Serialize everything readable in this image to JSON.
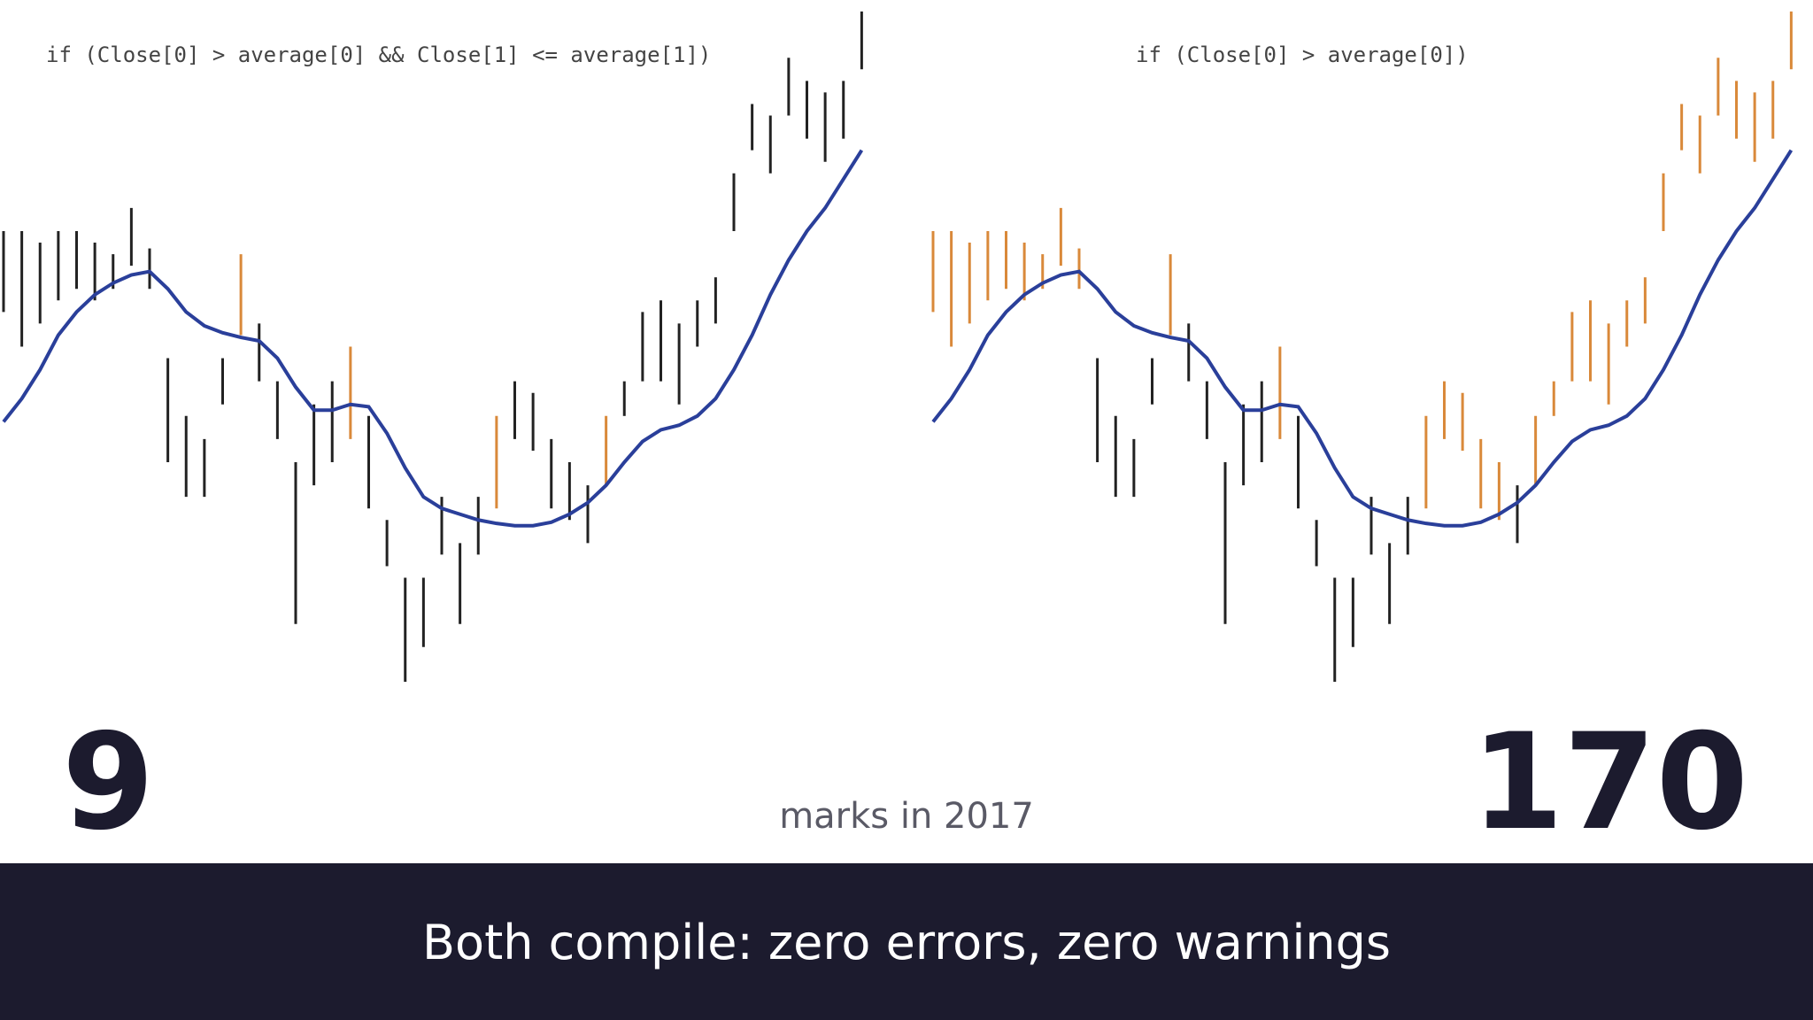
{
  "panels": [
    {
      "code": "if (Close[0] > average[0] && Close[1] <= average[1])",
      "count": "9",
      "rule": "cross"
    },
    {
      "code": "if (Close[0] > average[0])",
      "count": "170",
      "rule": "above"
    }
  ],
  "series": {
    "low": [
      330,
      300,
      320,
      340,
      350,
      340,
      350,
      370,
      350,
      200,
      170,
      170,
      250,
      310,
      270,
      220,
      60,
      180,
      200,
      220,
      160,
      110,
      10,
      40,
      120,
      60,
      120,
      160,
      220,
      210,
      160,
      150,
      130,
      180,
      240,
      270,
      270,
      250,
      300,
      320,
      400,
      470,
      450,
      500,
      480,
      460,
      480,
      540
    ],
    "high": [
      400,
      400,
      390,
      400,
      400,
      390,
      380,
      420,
      385,
      290,
      240,
      220,
      290,
      380,
      320,
      270,
      200,
      250,
      270,
      300,
      240,
      150,
      100,
      100,
      170,
      130,
      170,
      240,
      270,
      260,
      220,
      200,
      180,
      240,
      270,
      330,
      340,
      320,
      340,
      360,
      450,
      510,
      500,
      550,
      530,
      520,
      530,
      590
    ],
    "average": [
      235,
      255,
      280,
      310,
      330,
      345,
      355,
      362,
      365,
      350,
      330,
      318,
      312,
      308,
      305,
      290,
      265,
      245,
      245,
      250,
      248,
      225,
      195,
      170,
      160,
      155,
      150,
      147,
      145,
      145,
      148,
      155,
      165,
      180,
      200,
      218,
      228,
      232,
      240,
      255,
      280,
      310,
      345,
      375,
      400,
      420,
      445,
      470
    ],
    "ylim": [
      0,
      600
    ],
    "bar_color": "#222",
    "mark_color": "#d9893a",
    "average_color": "#2a3f9a"
  },
  "caption": "marks in 2017",
  "banner": "Both compile: zero errors, zero warnings"
}
